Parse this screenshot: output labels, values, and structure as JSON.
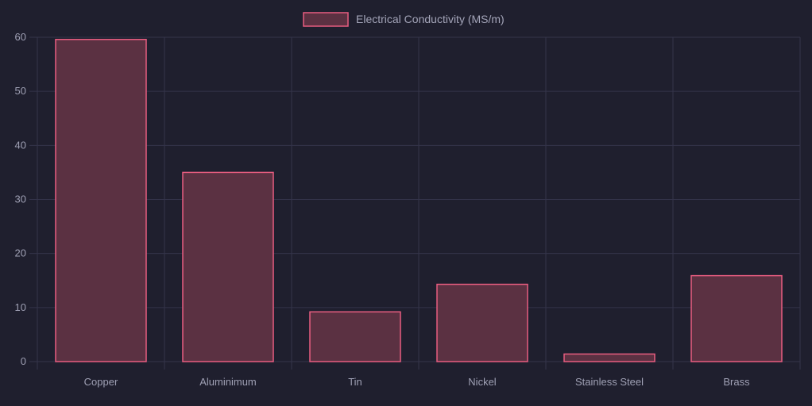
{
  "chart_data": {
    "type": "bar",
    "categories": [
      "Copper",
      "Aluminimum",
      "Tin",
      "Nickel",
      "Stainless Steel",
      "Brass"
    ],
    "series": [
      {
        "name": "Electrical Conductivity (MS/m)",
        "values": [
          59.6,
          35.0,
          9.2,
          14.3,
          1.4,
          15.9
        ]
      }
    ],
    "ylim": [
      0,
      60
    ],
    "yticks": [
      "0",
      "10",
      "20",
      "30",
      "40",
      "50",
      "60"
    ],
    "grid": true,
    "legend_position": "top",
    "colors": {
      "background": "#1f1f2e",
      "grid": "#34344a",
      "bar_fill": "#5b3142",
      "bar_stroke": "#e85d80",
      "text": "#9fa0b4"
    }
  }
}
